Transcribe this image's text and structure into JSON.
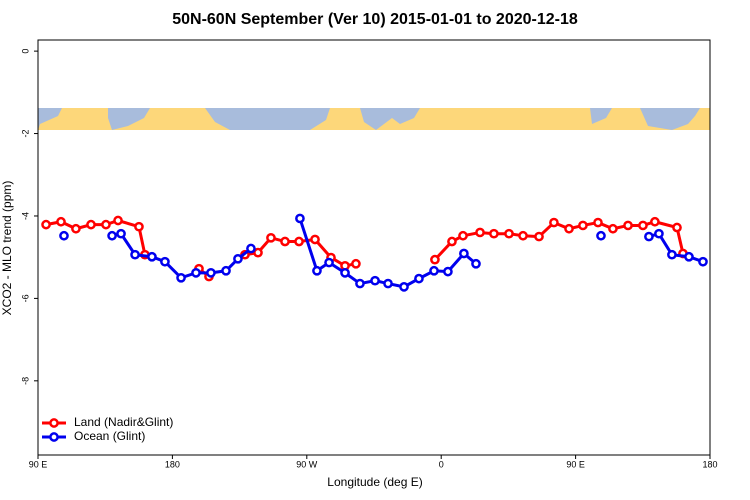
{
  "chart_data": {
    "type": "line",
    "title": "50N-60N September (Ver 10)   2015-01-01 to 2020-12-18",
    "x_label": "Longitude (deg E)",
    "y_label": "XCO2 - MLO trend (ppm)",
    "xlim": [
      90,
      540
    ],
    "ylim": [
      -9.8,
      0.27
    ],
    "xticks": [
      {
        "value": 90,
        "label": "90 E"
      },
      180,
      {
        "value": 270,
        "label": "90 W"
      },
      {
        "value": 360,
        "label": "0"
      },
      {
        "value": 450,
        "label": "90 E"
      },
      {
        "value": 540,
        "label": "180"
      }
    ],
    "yticks": [
      0,
      -2,
      -4,
      -6,
      -8
    ],
    "legend": "bottomleft",
    "series": [
      {
        "name": "Land (Nadir&Glint)",
        "color": "#ff0000",
        "x": [
          95.4,
          105.4,
          115.4,
          125.5,
          135.5,
          143.6,
          157.6,
          161.6,
          null,
          197.8,
          204.5,
          null,
          228.6,
          237.3,
          246.0,
          255.4,
          264.8,
          275.5,
          286.2,
          295.6,
          302.9,
          null,
          355.8,
          367.2,
          374.6,
          386.0,
          395.3,
          405.4,
          414.8,
          425.5,
          435.5,
          445.6,
          454.9,
          465.0,
          475.0,
          485.1,
          495.1,
          503.1,
          517.9,
          521.9
        ],
        "values": [
          -4.21,
          -4.14,
          -4.31,
          -4.21,
          -4.21,
          -4.11,
          -4.26,
          -4.94,
          null,
          -5.28,
          -5.47,
          null,
          -4.94,
          -4.89,
          -4.53,
          -4.62,
          -4.62,
          -4.57,
          -5.01,
          -5.21,
          -5.16,
          null,
          -5.06,
          -4.62,
          -4.48,
          -4.4,
          -4.43,
          -4.43,
          -4.48,
          -4.5,
          -4.16,
          -4.31,
          -4.23,
          -4.16,
          -4.31,
          -4.23,
          -4.23,
          -4.14,
          -4.28,
          -4.91
        ]
      },
      {
        "name": "Ocean (Glint)",
        "color": "#0000ee",
        "x": [
          107.4,
          null,
          139.6,
          145.6,
          155.0,
          166.3,
          175.0,
          185.8,
          195.8,
          205.8,
          215.9,
          223.9,
          232.6,
          null,
          265.4,
          276.8,
          284.9,
          295.6,
          305.6,
          315.7,
          324.4,
          335.1,
          345.1,
          355.2,
          364.5,
          375.2,
          383.3,
          null,
          467.0,
          null,
          499.1,
          505.8,
          514.5,
          525.9,
          535.3
        ],
        "values": [
          -4.48,
          null,
          -4.48,
          -4.43,
          -4.94,
          -4.99,
          -5.11,
          -5.5,
          -5.38,
          -5.38,
          -5.33,
          -5.04,
          -4.79,
          null,
          -4.06,
          -5.33,
          -5.13,
          -5.38,
          -5.64,
          -5.57,
          -5.64,
          -5.72,
          -5.52,
          -5.33,
          -5.35,
          -4.91,
          -5.16,
          null,
          -4.48,
          null,
          -4.5,
          -4.43,
          -4.94,
          -4.99,
          -5.11
        ]
      }
    ]
  }
}
